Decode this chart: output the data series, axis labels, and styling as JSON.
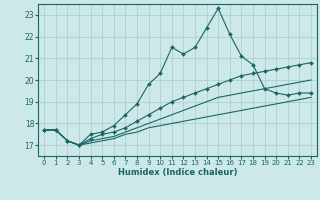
{
  "xlabel": "Humidex (Indice chaleur)",
  "bg_color": "#cce8e8",
  "grid_color": "#aacccc",
  "line_color": "#1a6666",
  "xlim": [
    -0.5,
    23.5
  ],
  "ylim": [
    16.5,
    23.5
  ],
  "xticks": [
    0,
    1,
    2,
    3,
    4,
    5,
    6,
    7,
    8,
    9,
    10,
    11,
    12,
    13,
    14,
    15,
    16,
    17,
    18,
    19,
    20,
    21,
    22,
    23
  ],
  "yticks": [
    17,
    18,
    19,
    20,
    21,
    22,
    23
  ],
  "main_line": {
    "x": [
      0,
      1,
      2,
      3,
      4,
      5,
      6,
      7,
      8,
      9,
      10,
      11,
      12,
      13,
      14,
      15,
      16,
      17,
      18,
      19,
      20,
      21,
      22,
      23
    ],
    "y": [
      17.7,
      17.7,
      17.2,
      17.0,
      17.5,
      17.6,
      17.9,
      18.4,
      18.9,
      19.8,
      20.3,
      21.5,
      21.2,
      21.5,
      22.4,
      23.3,
      22.1,
      21.1,
      20.7,
      19.6,
      19.4,
      19.3,
      19.4,
      19.4
    ]
  },
  "line2": {
    "x": [
      0,
      1,
      2,
      3,
      4,
      5,
      6,
      7,
      8,
      9,
      10,
      11,
      12,
      13,
      14,
      15,
      16,
      17,
      18,
      19,
      20,
      21,
      22,
      23
    ],
    "y": [
      17.7,
      17.7,
      17.2,
      17.0,
      17.3,
      17.5,
      17.6,
      17.8,
      18.1,
      18.4,
      18.7,
      19.0,
      19.2,
      19.4,
      19.6,
      19.8,
      20.0,
      20.2,
      20.3,
      20.4,
      20.5,
      20.6,
      20.7,
      20.8
    ]
  },
  "line3": {
    "x": [
      0,
      1,
      2,
      3,
      4,
      5,
      6,
      7,
      8,
      9,
      10,
      11,
      12,
      13,
      14,
      15,
      16,
      17,
      18,
      19,
      20,
      21,
      22,
      23
    ],
    "y": [
      17.7,
      17.7,
      17.2,
      17.0,
      17.2,
      17.3,
      17.4,
      17.6,
      17.8,
      18.0,
      18.2,
      18.4,
      18.6,
      18.8,
      19.0,
      19.2,
      19.3,
      19.4,
      19.5,
      19.6,
      19.7,
      19.8,
      19.9,
      20.0
    ]
  },
  "line4": {
    "x": [
      0,
      1,
      2,
      3,
      4,
      5,
      6,
      7,
      8,
      9,
      10,
      11,
      12,
      13,
      14,
      15,
      16,
      17,
      18,
      19,
      20,
      21,
      22,
      23
    ],
    "y": [
      17.7,
      17.7,
      17.2,
      17.0,
      17.1,
      17.2,
      17.3,
      17.5,
      17.6,
      17.8,
      17.9,
      18.0,
      18.1,
      18.2,
      18.3,
      18.4,
      18.5,
      18.6,
      18.7,
      18.8,
      18.9,
      19.0,
      19.1,
      19.2
    ]
  }
}
